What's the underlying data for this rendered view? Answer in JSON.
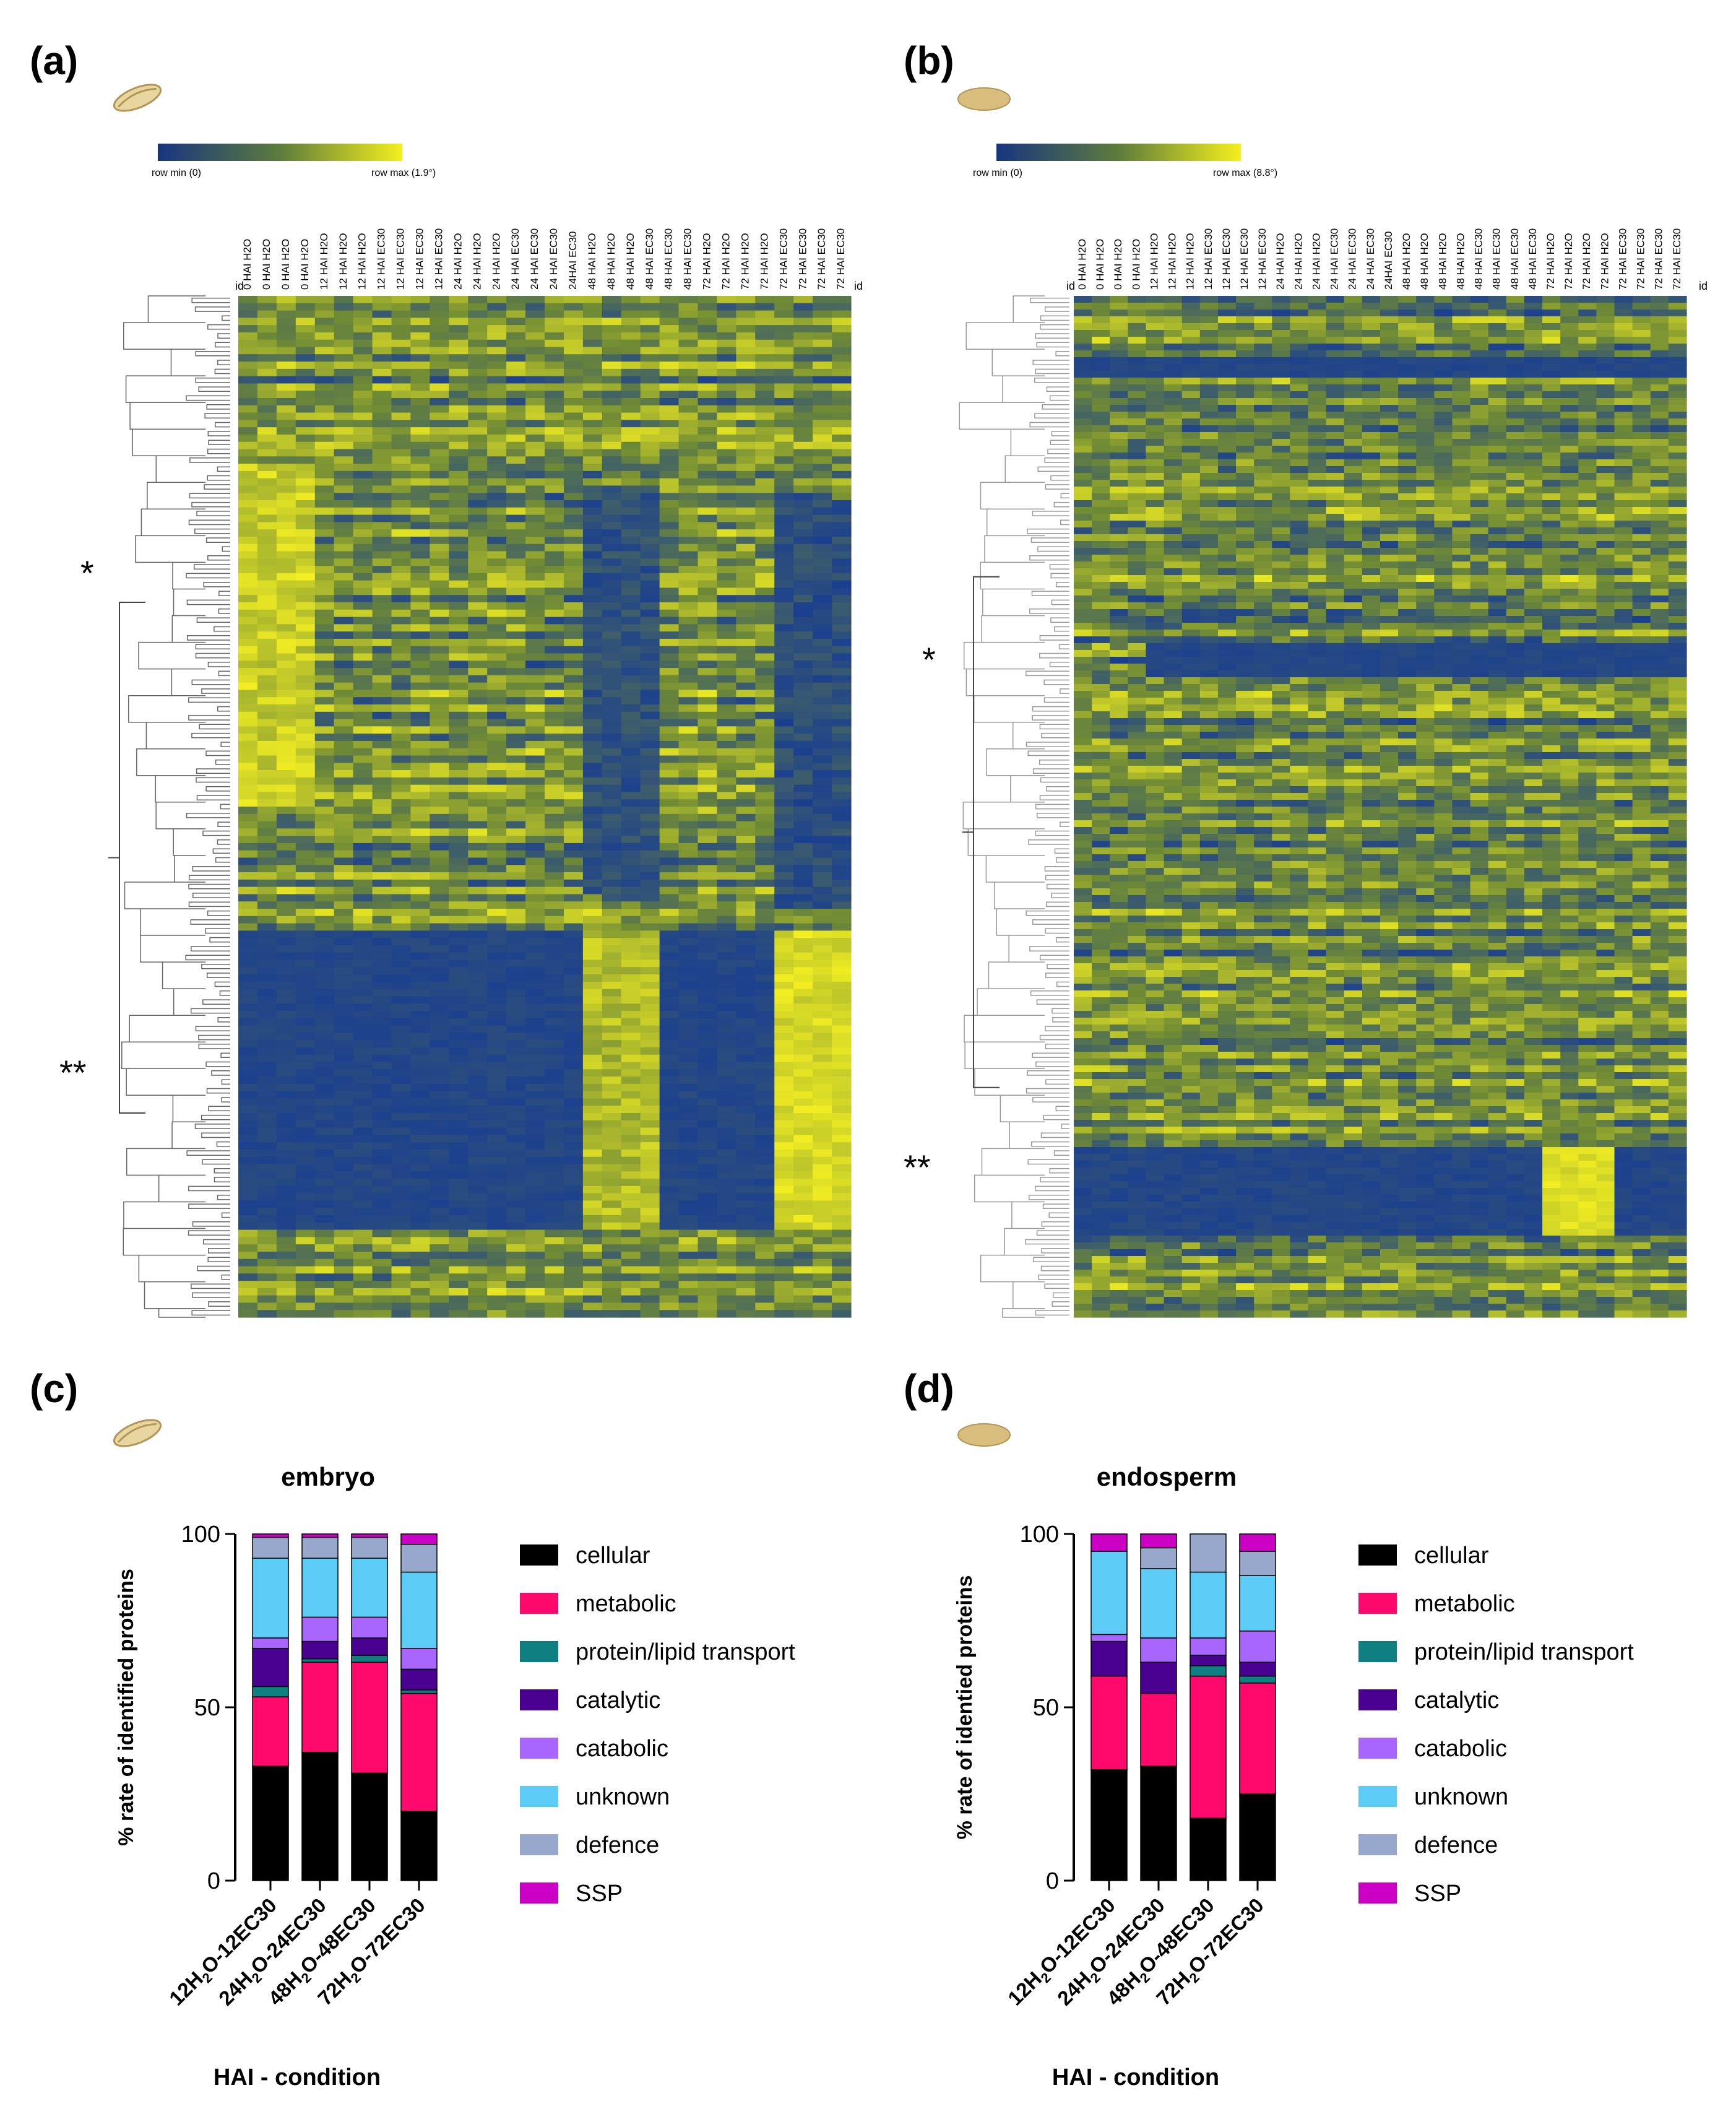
{
  "panels": {
    "a": {
      "label": "(a)",
      "tissue_icon": "embryo-seed-icon",
      "scale_min": "row min (0)",
      "scale_max": "row max (1.9°)",
      "id_label": "id",
      "cluster_marks": [
        "*",
        "**"
      ],
      "columns": [
        "0 HAI H2O",
        "0 HAI H2O",
        "0 HAI H2O",
        "0 HAI H2O",
        "12 HAI H2O",
        "12 HAI H2O",
        "12 HAI H2O",
        "12 HAI EC30",
        "12 HAI EC30",
        "12 HAI EC30",
        "12 HAI EC30",
        "24 HAI H2O",
        "24 HAI H2O",
        "24 HAI H2O",
        "24 HAI EC30",
        "24 HAI EC30",
        "24 HAI EC30",
        "24HAI EC30",
        "48 HAI H2O",
        "48 HAI H2O",
        "48 HAI H2O",
        "48 HAI EC30",
        "48 HAI EC30",
        "48 HAI EC30",
        "72 HAI H2O",
        "72 HAI H2O",
        "72 HAI H2O",
        "72 HAI H2O",
        "72 HAI EC30",
        "72 HAI EC30",
        "72 HAI EC30",
        "72 HAI EC30"
      ]
    },
    "b": {
      "label": "(b)",
      "tissue_icon": "endosperm-seed-icon",
      "scale_min": "row min (0)",
      "scale_max": "row max (8.8°)",
      "id_label": "id",
      "cluster_marks": [
        "*",
        "**"
      ],
      "columns": [
        "0 HAI H2O",
        "0 HAI H2O",
        "0 HAI H2O",
        "0 HAI H2O",
        "12 HAI H2O",
        "12 HAI H2O",
        "12 HAI H2O",
        "12 HAI EC30",
        "12 HAI EC30",
        "12 HAI EC30",
        "12 HAI EC30",
        "24 HAI H2O",
        "24 HAI H2O",
        "24 HAI H2O",
        "24 HAI EC30",
        "24 HAI EC30",
        "24 HAI EC30",
        "24HAI EC30",
        "48 HAI H2O",
        "48 HAI H2O",
        "48 HAI H2O",
        "48 HAI H2O",
        "48 HAI EC30",
        "48 HAI EC30",
        "48 HAI EC30",
        "48 HAI EC30",
        "72 HAI H2O",
        "72 HAI H2O",
        "72 HAI H2O",
        "72 HAI H2O",
        "72 HAI EC30",
        "72 HAI EC30",
        "72 HAI EC30",
        "72 HAI EC30"
      ]
    },
    "c": {
      "label": "(c)",
      "tissue_icon": "embryo-seed-icon"
    },
    "d": {
      "label": "(d)",
      "tissue_icon": "endosperm-seed-icon"
    }
  },
  "colors": {
    "heat_low": "#1b3f8f",
    "heat_mid": "#6f8a35",
    "heat_high": "#f2ee22",
    "cellular": "#000000",
    "metabolic": "#ff0a6c",
    "protein/lipid transport": "#0f7f82",
    "catalytic": "#4a0090",
    "catabolic": "#a866ff",
    "unknown": "#5ccbf5",
    "defence": "#97a8cc",
    "SSP": "#cc00c4"
  },
  "chart_data": [
    {
      "id": "c",
      "type": "bar",
      "stacked": true,
      "title": "embryo",
      "ylabel": "% rate  of identified proteins",
      "xlabel": "HAI - condition",
      "ylim": [
        0,
        100
      ],
      "yticks": [
        0,
        50,
        100
      ],
      "categories": [
        "12H2O-12EC30",
        "24H2O-24EC30",
        "48H2O-48EC30",
        "72H2O-72EC30"
      ],
      "series": [
        {
          "name": "cellular",
          "values": [
            33,
            37,
            31,
            20
          ]
        },
        {
          "name": "metabolic",
          "values": [
            20,
            26,
            32,
            34
          ]
        },
        {
          "name": "protein/lipid transport",
          "values": [
            3,
            1,
            2,
            1
          ]
        },
        {
          "name": "catalytic",
          "values": [
            11,
            5,
            5,
            6
          ]
        },
        {
          "name": "catabolic",
          "values": [
            3,
            7,
            6,
            6
          ]
        },
        {
          "name": "unknown",
          "values": [
            23,
            17,
            17,
            22
          ]
        },
        {
          "name": "defence",
          "values": [
            6,
            6,
            6,
            8
          ]
        },
        {
          "name": "SSP",
          "values": [
            1,
            1,
            1,
            3
          ]
        }
      ]
    },
    {
      "id": "d",
      "type": "bar",
      "stacked": true,
      "title": "endosperm",
      "ylabel": "% rate of identied proteins",
      "xlabel": "HAI - condition",
      "ylim": [
        0,
        100
      ],
      "yticks": [
        0,
        50,
        100
      ],
      "categories": [
        "12H2O-12EC30",
        "24H2O-24EC30",
        "48H2O-48EC30",
        "72H2O-72EC30"
      ],
      "series": [
        {
          "name": "cellular",
          "values": [
            32,
            33,
            18,
            25
          ]
        },
        {
          "name": "metabolic",
          "values": [
            27,
            21,
            41,
            32
          ]
        },
        {
          "name": "protein/lipid transport",
          "values": [
            0,
            0,
            3,
            2
          ]
        },
        {
          "name": "catalytic",
          "values": [
            10,
            9,
            3,
            4
          ]
        },
        {
          "name": "catabolic",
          "values": [
            2,
            7,
            5,
            9
          ]
        },
        {
          "name": "unknown",
          "values": [
            24,
            20,
            19,
            16
          ]
        },
        {
          "name": "defence",
          "values": [
            0,
            6,
            11,
            7
          ]
        },
        {
          "name": "SSP",
          "values": [
            5,
            4,
            0,
            5
          ]
        }
      ]
    }
  ]
}
